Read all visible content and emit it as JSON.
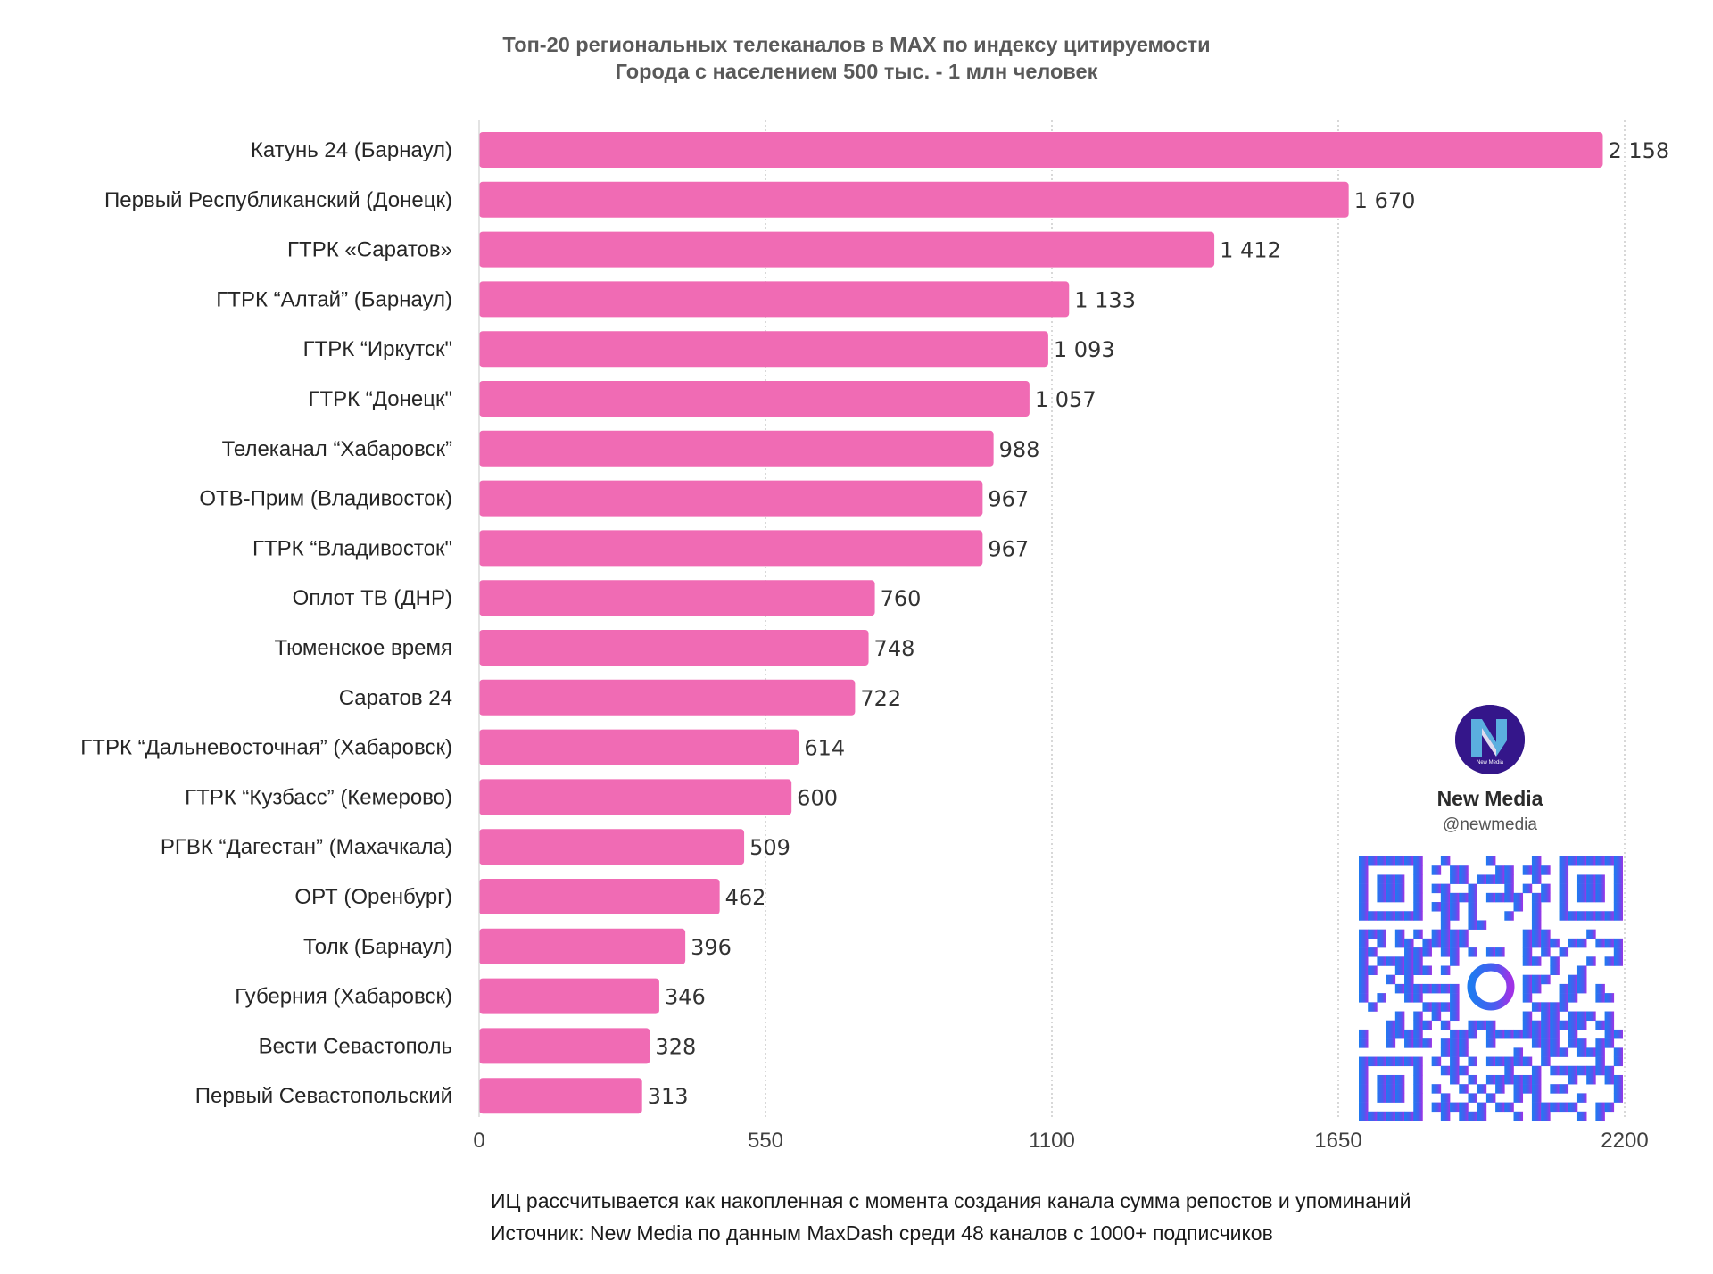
{
  "chart_data": {
    "type": "bar",
    "orientation": "horizontal",
    "title": "Топ-20 региональных телеканалов в MAX по индексу цитируемости",
    "subtitle": "Города с населением 500 тыс. - 1 млн человек",
    "categories": [
      "Катунь 24 (Барнаул)",
      "Первый Республиканский (Донецк)",
      "ГТРК «Саратов»",
      "ГТРК “Алтай” (Барнаул)",
      "ГТРК “Иркутск\"",
      "ГТРК “Донецк\"",
      "Телеканал “Хабаровск”",
      "ОТВ-Прим (Владивосток)",
      "ГТРК “Владивосток\"",
      "Оплот ТВ (ДНР)",
      "Тюменское время",
      "Саратов 24",
      "ГТРК “Дальневосточная” (Хабаровск)",
      "ГТРК “Кузбасс” (Кемерово)",
      "РГВК “Дагестан” (Махачкала)",
      "ОРТ (Оренбург)",
      "Толк (Барнаул)",
      "Губерния (Хабаровск)",
      "Вести Севастополь",
      "Первый Севастопольский"
    ],
    "values": [
      2158,
      1670,
      1412,
      1133,
      1093,
      1057,
      988,
      967,
      967,
      760,
      748,
      722,
      614,
      600,
      509,
      462,
      396,
      346,
      328,
      313
    ],
    "value_labels": [
      "2 158",
      "1 670",
      "1 412",
      "1 133",
      "1 093",
      "1 057",
      "988",
      "967",
      "967",
      "760",
      "748",
      "722",
      "614",
      "600",
      "509",
      "462",
      "396",
      "346",
      "328",
      "313"
    ],
    "xlim": [
      0,
      2200
    ],
    "xticks": [
      0,
      550,
      1100,
      1650,
      2200
    ],
    "xtick_labels": [
      "0",
      "550",
      "1100",
      "1650",
      "2200"
    ],
    "grid": true,
    "bar_color": "#f06bb4",
    "grid_color": "#bdbdbd"
  },
  "footnotes": {
    "line1": "ИЦ рассчитывается как накопленная с момента создания канала сумма репостов и упоминаний",
    "line2": "Источник: New Media по данным MaxDash среди 48 каналов с 1000+ подписчиков"
  },
  "brand": {
    "name": "New Media",
    "handle": "@newmedia",
    "logo_text": "New Media",
    "logo_icon": "newmedia-logo-icon",
    "qr_icon": "qr-code-icon"
  }
}
